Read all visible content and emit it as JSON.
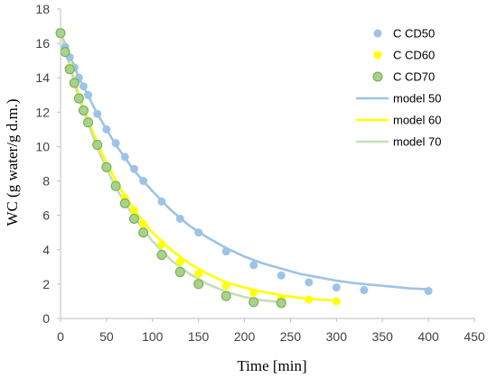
{
  "chart_data": {
    "type": "scatter",
    "xlabel": "Time [min]",
    "ylabel": "WC (g water/g d.m.)",
    "xlim": [
      0,
      450
    ],
    "ylim": [
      0,
      18
    ],
    "xticks": [
      0,
      50,
      100,
      150,
      200,
      250,
      300,
      350,
      400,
      450
    ],
    "yticks": [
      0,
      2,
      4,
      6,
      8,
      10,
      12,
      14,
      16,
      18
    ],
    "grid": false,
    "legend_position": "top-right",
    "series": [
      {
        "name": "C CD50",
        "kind": "points",
        "color": "#9dc3e6",
        "x": [
          0,
          5,
          10,
          15,
          20,
          25,
          30,
          40,
          50,
          60,
          70,
          80,
          90,
          110,
          130,
          150,
          180,
          210,
          240,
          270,
          300,
          330,
          400
        ],
        "y": [
          16.6,
          15.8,
          15.2,
          14.6,
          14.0,
          13.5,
          13.0,
          11.9,
          11.0,
          10.2,
          9.4,
          8.7,
          8.0,
          6.8,
          5.8,
          5.0,
          3.9,
          3.1,
          2.5,
          2.1,
          1.8,
          1.65,
          1.6
        ]
      },
      {
        "name": "C CD60",
        "kind": "points",
        "color": "#ffff00",
        "x": [
          0,
          10,
          20,
          30,
          40,
          50,
          60,
          70,
          80,
          90,
          110,
          130,
          150,
          180,
          210,
          240,
          270,
          300
        ],
        "y": [
          16.6,
          14.6,
          12.9,
          11.5,
          10.1,
          8.8,
          7.8,
          7.0,
          6.3,
          5.5,
          4.3,
          3.3,
          2.6,
          1.9,
          1.5,
          1.2,
          1.1,
          1.0
        ]
      },
      {
        "name": "C CD70",
        "kind": "points",
        "color": "#a9d18e",
        "x": [
          0,
          5,
          10,
          15,
          20,
          25,
          30,
          40,
          50,
          60,
          70,
          80,
          90,
          110,
          130,
          150,
          180,
          210,
          240
        ],
        "y": [
          16.6,
          15.5,
          14.5,
          13.7,
          12.8,
          12.1,
          11.4,
          10.1,
          8.8,
          7.7,
          6.7,
          5.8,
          5.0,
          3.7,
          2.7,
          2.0,
          1.3,
          0.95,
          0.9
        ]
      },
      {
        "name": "model 50",
        "kind": "line",
        "color": "#9dc3e6",
        "x": [
          0,
          20,
          40,
          60,
          80,
          100,
          120,
          140,
          160,
          180,
          200,
          220,
          240,
          260,
          280,
          300,
          320,
          340,
          360,
          380,
          400
        ],
        "y": [
          16.6,
          14.0,
          11.9,
          10.1,
          8.6,
          7.4,
          6.3,
          5.4,
          4.7,
          4.1,
          3.6,
          3.2,
          2.9,
          2.6,
          2.4,
          2.2,
          2.05,
          1.95,
          1.85,
          1.75,
          1.7
        ]
      },
      {
        "name": "model 60",
        "kind": "line",
        "color": "#ffff00",
        "x": [
          0,
          20,
          40,
          60,
          80,
          100,
          120,
          140,
          160,
          180,
          200,
          220,
          240,
          260,
          280,
          300
        ],
        "y": [
          16.6,
          13.0,
          10.2,
          8.0,
          6.3,
          5.0,
          4.0,
          3.2,
          2.6,
          2.1,
          1.8,
          1.55,
          1.35,
          1.2,
          1.1,
          1.05
        ]
      },
      {
        "name": "model 70",
        "kind": "line",
        "color": "#c5e0b4",
        "x": [
          0,
          20,
          40,
          60,
          80,
          100,
          120,
          140,
          160,
          180,
          200,
          220,
          240
        ],
        "y": [
          16.6,
          12.8,
          9.9,
          7.6,
          5.9,
          4.5,
          3.4,
          2.6,
          2.0,
          1.55,
          1.25,
          1.05,
          0.95
        ]
      }
    ]
  }
}
